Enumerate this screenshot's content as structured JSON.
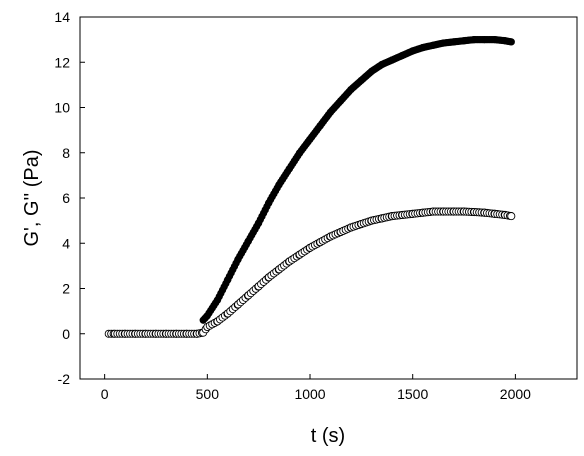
{
  "chart_data": {
    "type": "scatter",
    "title": "",
    "xlabel": "t (s)",
    "ylabel": "G', G'' (Pa)",
    "xlim": [
      -120,
      2300
    ],
    "ylim": [
      -2,
      14
    ],
    "xticks": [
      0,
      500,
      1000,
      1500,
      2000
    ],
    "yticks": [
      -2,
      0,
      2,
      4,
      6,
      8,
      10,
      12,
      14
    ],
    "legend": "none",
    "grid": false,
    "series": [
      {
        "marker": "filled-circle",
        "color": "#000000",
        "x": [
          480,
          500,
          550,
          600,
          650,
          700,
          750,
          800,
          850,
          900,
          950,
          1000,
          1050,
          1100,
          1150,
          1200,
          1250,
          1300,
          1350,
          1400,
          1450,
          1500,
          1550,
          1600,
          1650,
          1700,
          1750,
          1800,
          1850,
          1900,
          1950,
          1980
        ],
        "y": [
          0.6,
          0.8,
          1.5,
          2.4,
          3.3,
          4.1,
          4.9,
          5.8,
          6.6,
          7.3,
          8.0,
          8.6,
          9.2,
          9.8,
          10.3,
          10.8,
          11.2,
          11.6,
          11.9,
          12.1,
          12.3,
          12.5,
          12.65,
          12.75,
          12.85,
          12.9,
          12.95,
          13.0,
          13.0,
          13.0,
          12.95,
          12.9
        ]
      },
      {
        "marker": "open-circle",
        "color": "#000000",
        "x": [
          20,
          50,
          100,
          150,
          200,
          250,
          300,
          350,
          400,
          450,
          480,
          500,
          550,
          600,
          650,
          700,
          750,
          800,
          850,
          900,
          950,
          1000,
          1050,
          1100,
          1150,
          1200,
          1250,
          1300,
          1350,
          1400,
          1450,
          1500,
          1550,
          1600,
          1650,
          1700,
          1750,
          1800,
          1850,
          1900,
          1950,
          1980
        ],
        "y": [
          0.0,
          0.0,
          0.0,
          0.0,
          0.0,
          0.0,
          0.0,
          0.0,
          0.0,
          0.0,
          0.05,
          0.3,
          0.55,
          0.9,
          1.3,
          1.7,
          2.1,
          2.5,
          2.85,
          3.2,
          3.5,
          3.8,
          4.05,
          4.3,
          4.5,
          4.7,
          4.85,
          5.0,
          5.1,
          5.2,
          5.25,
          5.3,
          5.35,
          5.4,
          5.4,
          5.4,
          5.4,
          5.38,
          5.35,
          5.3,
          5.25,
          5.2
        ]
      }
    ]
  }
}
